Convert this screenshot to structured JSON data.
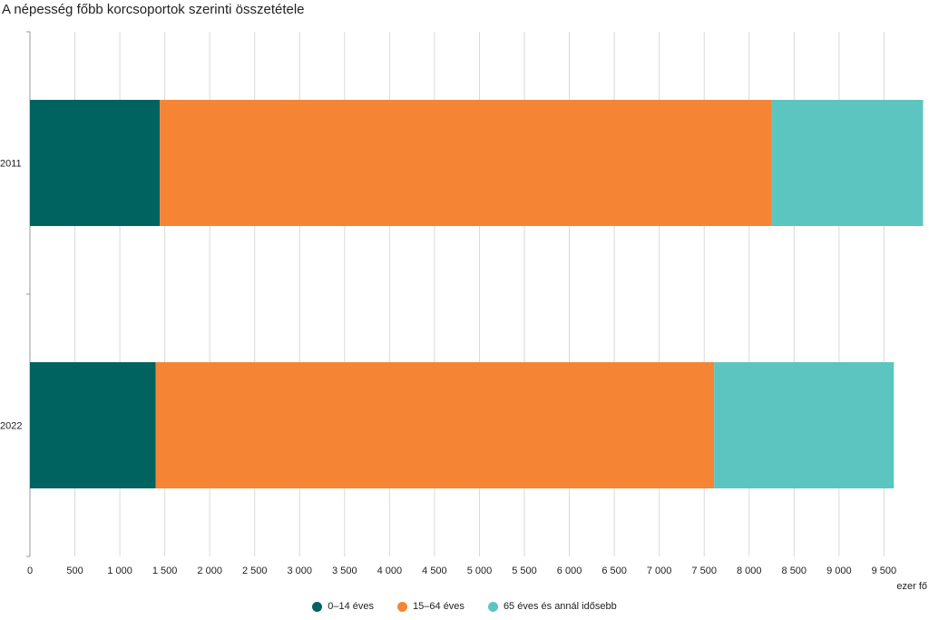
{
  "title": "A népesség főbb korcsoportok szerinti összetétele",
  "unit_label": "ezer fő",
  "chart_data": {
    "type": "bar",
    "orientation": "horizontal",
    "stacked": true,
    "categories": [
      "2011",
      "2022"
    ],
    "series": [
      {
        "name": "0–14 éves",
        "color": "#00635f",
        "values": [
          1445,
          1400
        ]
      },
      {
        "name": "15–64 éves",
        "color": "#f58535",
        "values": [
          6800,
          6210
        ]
      },
      {
        "name": "65 éves és annál idősebb",
        "color": "#5dc5bf",
        "values": [
          1690,
          2000
        ]
      }
    ],
    "xlim": [
      0,
      9930
    ],
    "xticks": [
      0,
      500,
      1000,
      1500,
      2000,
      2500,
      3000,
      3500,
      4000,
      4500,
      5000,
      5500,
      6000,
      6500,
      7000,
      7500,
      8000,
      8500,
      9000,
      9500
    ],
    "xtick_labels": [
      "0",
      "500",
      "1 000",
      "1 500",
      "2 000",
      "2 500",
      "3 000",
      "3 500",
      "4 000",
      "4 500",
      "5 000",
      "5 500",
      "6 000",
      "6 500",
      "7 000",
      "7 500",
      "8 000",
      "8 500",
      "9 000",
      "9 500"
    ],
    "grid": true,
    "legend_position": "bottom-center"
  }
}
